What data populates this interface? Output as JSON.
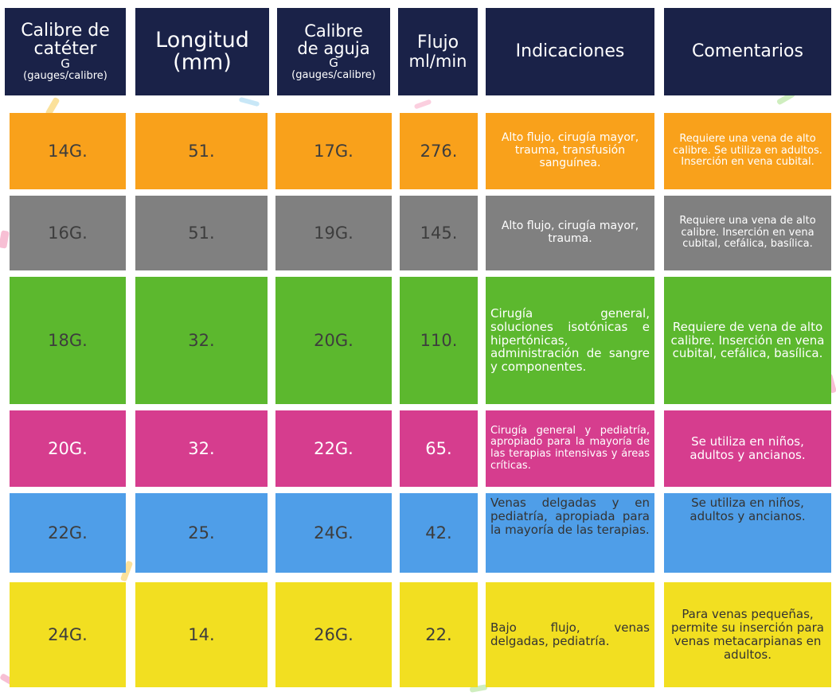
{
  "header": {
    "catheter": {
      "line1": "Calibre de",
      "line2": "catéter",
      "line3": "G",
      "line4": "(gauges/calibre)"
    },
    "length": {
      "line1": "Longitud",
      "line2": "(mm)"
    },
    "needle": {
      "line1": "Calibre",
      "line2": "de aguja",
      "line3": "G",
      "line4": "(gauges/calibre)"
    },
    "flow": {
      "line1": "Flujo",
      "line2": "ml/min"
    },
    "indications": "Indicaciones",
    "comments": "Comentarios"
  },
  "rows": [
    {
      "catheter": "14G.",
      "length": "51.",
      "needle": "17G.",
      "flow": "276.",
      "indications": "Alto flujo, cirugía mayor, trauma, transfusión sanguínea.",
      "comments": "Requiere una vena de alto calibre. Se utiliza en adultos. Inserción en vena cubital.",
      "color": "#f9a11b"
    },
    {
      "catheter": "16G.",
      "length": "51.",
      "needle": "19G.",
      "flow": "145.",
      "indications": "Alto flujo, cirugía mayor, trauma.",
      "comments": "Requiere una vena de alto calibre. Inserción en vena cubital, cefálica, basílica.",
      "color": "#808080"
    },
    {
      "catheter": "18G.",
      "length": "32.",
      "needle": "20G.",
      "flow": "110.",
      "indications": "Cirugía general, soluciones isotónicas e hipertónicas, administración de sangre y componentes.",
      "comments": "Requiere de vena de alto calibre. Inserción en vena cubital, cefálica, basílica.",
      "color": "#5cb82e"
    },
    {
      "catheter": "20G.",
      "length": "32.",
      "needle": "22G.",
      "flow": "65.",
      "indications": "Cirugía general y pediatría, apropiado para la mayoría de las terapias intensivas y áreas críticas.",
      "comments": "Se utiliza en niños, adultos y ancianos.",
      "color": "#d63d8e"
    },
    {
      "catheter": "22G.",
      "length": "25.",
      "needle": "24G.",
      "flow": "42.",
      "indications": "Venas delgadas y en pediatría, apropiada para la mayoría de las terapias.",
      "comments": "Se utiliza en niños, adultos y ancianos.",
      "color": "#4f9ee8"
    },
    {
      "catheter": "24G.",
      "length": "14.",
      "needle": "26G.",
      "flow": "22.",
      "indications": "Bajo flujo, venas delgadas, pediatría.",
      "comments": "Para venas pequeñas, permite su inserción para venas metacarpianas en adultos.",
      "color": "#f2df21"
    }
  ]
}
